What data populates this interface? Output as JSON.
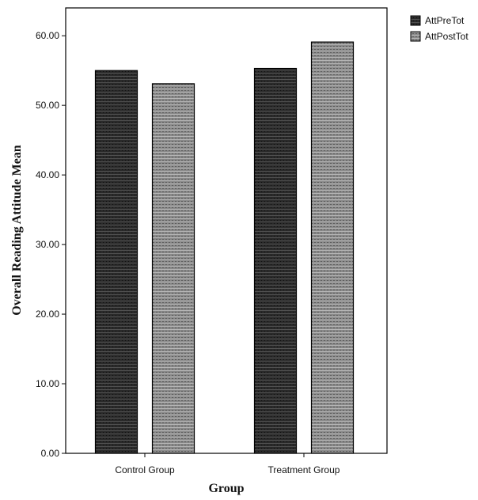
{
  "chart_data": {
    "type": "bar",
    "categories": [
      "Control Group",
      "Treatment Group"
    ],
    "series": [
      {
        "name": "AttPreTot",
        "values": [
          55.0,
          55.3
        ],
        "color": "#2a2a2a"
      },
      {
        "name": "AttPostTot",
        "values": [
          53.1,
          59.1
        ],
        "color": "#8a8a8a"
      }
    ],
    "xlabel": "Group",
    "ylabel": "Overall Reading Attitude Mean",
    "ylim": [
      0,
      64
    ],
    "yticks": [
      "0.00",
      "10.00",
      "20.00",
      "30.00",
      "40.00",
      "50.00",
      "60.00"
    ],
    "grid": false,
    "legend_position": "top-right, outside plot"
  }
}
